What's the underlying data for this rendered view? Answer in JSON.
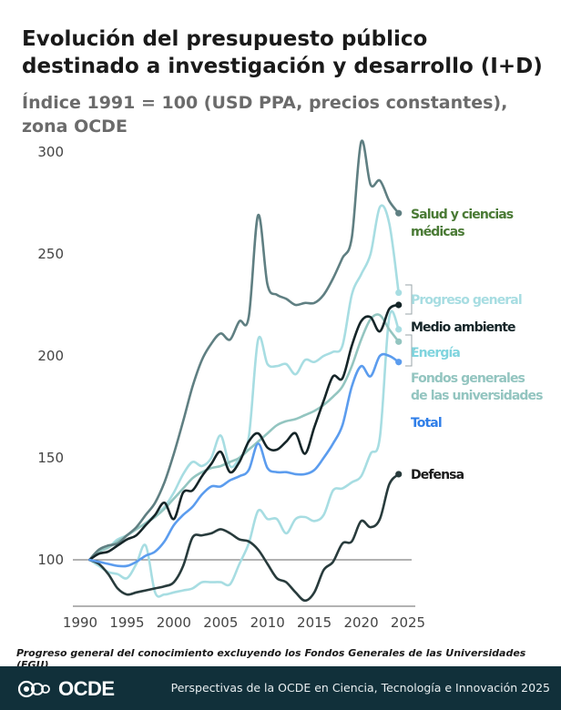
{
  "header": {
    "title": "Evolución del presupuesto público destinado a investigación y desarrollo (I+D)",
    "subtitle": "Índice 1991 = 100 (USD PPA, precios constantes), zona OCDE"
  },
  "footnote": "Progreso general del conocimiento excluyendo los Fondos Generales de las Universidades (FGU)",
  "footer": {
    "logo_text": "OCDE",
    "source": "Perspectivas de la OCDE en Ciencia, Tecnología e Innovación 2025"
  },
  "chart_data": {
    "type": "line",
    "title": "Evolución del presupuesto público destinado a investigación y desarrollo (I+D)",
    "subtitle": "Índice 1991 = 100 (USD PPA, precios constantes), zona OCDE",
    "xlabel": "",
    "ylabel": "",
    "xlim": [
      1988,
      2026
    ],
    "ylim": [
      78,
      305
    ],
    "xticks": [
      1990,
      1995,
      2000,
      2005,
      2010,
      2015,
      2020,
      2025
    ],
    "yticks": [
      100,
      150,
      200,
      250,
      300
    ],
    "baseline": 100,
    "grid": false,
    "legend": "direct labels at line ends (right)",
    "series": [
      {
        "name": "Salud y ciencias médicas",
        "color": "#5f7f82",
        "label_color": "#4a7a35",
        "label_lines": [
          "Salud y ciencias",
          "médicas"
        ],
        "x": [
          1991,
          1992,
          1993,
          1994,
          1995,
          1996,
          1997,
          1998,
          1999,
          2000,
          2001,
          2002,
          2003,
          2004,
          2005,
          2006,
          2007,
          2008,
          2009,
          2010,
          2011,
          2012,
          2013,
          2014,
          2015,
          2016,
          2017,
          2018,
          2019,
          2020,
          2021,
          2022,
          2023,
          2024
        ],
        "values": [
          100,
          105,
          107,
          108,
          112,
          116,
          122,
          128,
          138,
          152,
          168,
          185,
          198,
          206,
          211,
          208,
          217,
          219,
          269,
          235,
          230,
          228,
          225,
          226,
          226,
          230,
          238,
          248,
          258,
          305,
          284,
          286,
          276,
          270
        ]
      },
      {
        "name": "Progreso general",
        "color": "#a7dde2",
        "label_color": "#a7dde2",
        "label_lines": [
          "Progreso general"
        ],
        "x": [
          1991,
          1992,
          1993,
          1994,
          1995,
          1996,
          1997,
          1998,
          1999,
          2000,
          2001,
          2002,
          2003,
          2004,
          2005,
          2006,
          2007,
          2008,
          2009,
          2010,
          2011,
          2012,
          2013,
          2014,
          2015,
          2016,
          2017,
          2018,
          2019,
          2020,
          2021,
          2022,
          2023,
          2024
        ],
        "values": [
          100,
          104,
          106,
          110,
          112,
          115,
          118,
          122,
          126,
          133,
          142,
          148,
          146,
          150,
          161,
          146,
          150,
          160,
          208,
          196,
          195,
          196,
          191,
          198,
          197,
          200,
          202,
          205,
          230,
          240,
          250,
          273,
          265,
          231
        ]
      },
      {
        "name": "Medio ambiente",
        "color": "#152528",
        "label_color": "#152528",
        "label_lines": [
          "Medio ambiente"
        ],
        "x": [
          1991,
          1992,
          1993,
          1994,
          1995,
          1996,
          1997,
          1998,
          1999,
          2000,
          2001,
          2002,
          2003,
          2004,
          2005,
          2006,
          2007,
          2008,
          2009,
          2010,
          2011,
          2012,
          2013,
          2014,
          2015,
          2016,
          2017,
          2018,
          2019,
          2020,
          2021,
          2022,
          2023,
          2024
        ],
        "values": [
          100,
          103,
          104,
          107,
          110,
          112,
          117,
          122,
          128,
          120,
          133,
          134,
          141,
          147,
          153,
          143,
          148,
          158,
          162,
          155,
          154,
          158,
          162,
          152,
          165,
          178,
          190,
          189,
          205,
          217,
          219,
          212,
          223,
          225
        ]
      },
      {
        "name": "Energía",
        "color": "#a7dde2",
        "label_color": "#7fd4de",
        "label_lines": [
          "Energía"
        ],
        "x": [
          1991,
          1992,
          1993,
          1994,
          1995,
          1996,
          1997,
          1998,
          1999,
          2000,
          2001,
          2002,
          2003,
          2004,
          2005,
          2006,
          2007,
          2008,
          2009,
          2010,
          2011,
          2012,
          2013,
          2014,
          2015,
          2016,
          2017,
          2018,
          2019,
          2020,
          2021,
          2022,
          2023,
          2024
        ],
        "values": [
          100,
          97,
          94,
          93,
          91,
          98,
          107,
          84,
          83,
          84,
          85,
          86,
          89,
          89,
          89,
          88,
          98,
          108,
          124,
          120,
          120,
          113,
          120,
          121,
          119,
          122,
          134,
          135,
          138,
          141,
          152,
          160,
          219,
          213
        ]
      },
      {
        "name": "Fondos generales de las universidades",
        "color": "#93c5c0",
        "label_color": "#93c5c0",
        "label_lines": [
          "Fondos generales",
          "de las universidades"
        ],
        "x": [
          1991,
          1992,
          1993,
          1994,
          1995,
          1996,
          1997,
          1998,
          1999,
          2000,
          2001,
          2002,
          2003,
          2004,
          2005,
          2006,
          2007,
          2008,
          2009,
          2010,
          2011,
          2012,
          2013,
          2014,
          2015,
          2016,
          2017,
          2018,
          2019,
          2020,
          2021,
          2022,
          2023,
          2024
        ],
        "values": [
          100,
          104,
          106,
          109,
          112,
          115,
          118,
          121,
          125,
          130,
          135,
          140,
          143,
          145,
          146,
          148,
          150,
          154,
          158,
          162,
          166,
          168,
          169,
          171,
          173,
          176,
          180,
          185,
          195,
          208,
          218,
          220,
          213,
          207
        ]
      },
      {
        "name": "Total",
        "color": "#5b9cee",
        "label_color": "#2f7ee8",
        "label_lines": [
          "Total"
        ],
        "x": [
          1991,
          1992,
          1993,
          1994,
          1995,
          1996,
          1997,
          1998,
          1999,
          2000,
          2001,
          2002,
          2003,
          2004,
          2005,
          2006,
          2007,
          2008,
          2009,
          2010,
          2011,
          2012,
          2013,
          2014,
          2015,
          2016,
          2017,
          2018,
          2019,
          2020,
          2021,
          2022,
          2023,
          2024
        ],
        "values": [
          100,
          99,
          98,
          97,
          97,
          99,
          102,
          104,
          109,
          117,
          122,
          126,
          132,
          136,
          136,
          139,
          141,
          144,
          157,
          145,
          143,
          143,
          142,
          142,
          144,
          150,
          157,
          166,
          185,
          195,
          190,
          200,
          200,
          197
        ]
      },
      {
        "name": "Defensa",
        "color": "#283b3c",
        "label_color": "#1a1a1a",
        "label_lines": [
          "Defensa"
        ],
        "x": [
          1991,
          1992,
          1993,
          1994,
          1995,
          1996,
          1997,
          1998,
          1999,
          2000,
          2001,
          2002,
          2003,
          2004,
          2005,
          2006,
          2007,
          2008,
          2009,
          2010,
          2011,
          2012,
          2013,
          2014,
          2015,
          2016,
          2017,
          2018,
          2019,
          2020,
          2021,
          2022,
          2023,
          2024
        ],
        "values": [
          100,
          98,
          93,
          86,
          83,
          84,
          85,
          86,
          87,
          89,
          97,
          111,
          112,
          113,
          115,
          113,
          110,
          109,
          105,
          98,
          91,
          89,
          84,
          80,
          84,
          95,
          99,
          108,
          109,
          119,
          116,
          120,
          137,
          142
        ]
      }
    ]
  }
}
